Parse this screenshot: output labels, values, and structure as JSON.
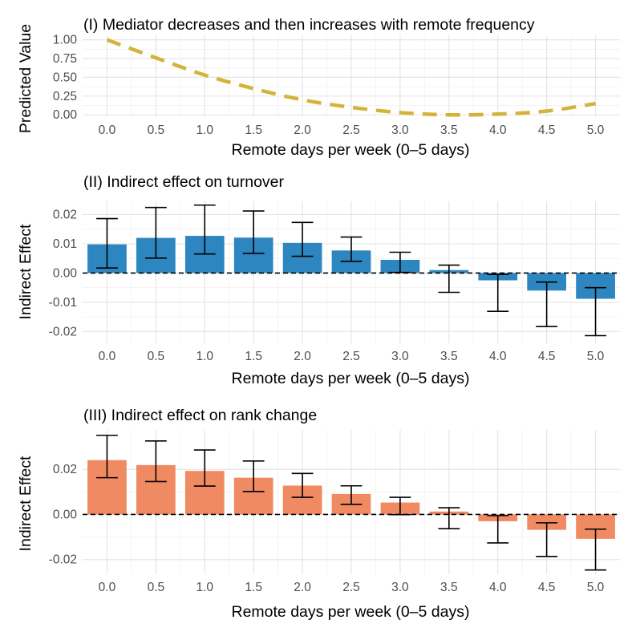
{
  "chart_data": [
    {
      "type": "line",
      "title": "(I) Mediator decreases and then increases with remote frequency",
      "xlabel": "Remote days per week (0–5 days)",
      "ylabel": "Predicted Value",
      "xlim": [
        -0.25,
        5.25
      ],
      "ylim": [
        -0.03,
        1.06
      ],
      "xticks": [
        "0.0",
        "0.5",
        "1.0",
        "1.5",
        "2.0",
        "2.5",
        "3.0",
        "3.5",
        "4.0",
        "4.5",
        "5.0"
      ],
      "yticks": [
        "0.00",
        "0.25",
        "0.50",
        "0.75",
        "1.00"
      ],
      "line_color": "#d4b33a",
      "line_style": "dashed",
      "series": [
        {
          "name": "Mediator",
          "x": [
            0.0,
            0.5,
            1.0,
            1.5,
            2.0,
            2.5,
            3.0,
            3.5,
            4.0,
            4.5,
            5.0
          ],
          "values": [
            1.0,
            0.76,
            0.53,
            0.35,
            0.2,
            0.1,
            0.03,
            0.0,
            0.01,
            0.05,
            0.15
          ]
        }
      ]
    },
    {
      "type": "bar",
      "title": "(II) Indirect effect on turnover",
      "xlabel": "Remote days per week (0–5 days)",
      "ylabel": "Indirect Effect",
      "xlim": [
        -0.25,
        5.25
      ],
      "ylim": [
        -0.024,
        0.0245
      ],
      "bar_color": "#2e86c1",
      "xticks": [
        "0.0",
        "0.5",
        "1.0",
        "1.5",
        "2.0",
        "2.5",
        "3.0",
        "3.5",
        "4.0",
        "4.5",
        "5.0"
      ],
      "yticks": [
        "-0.02",
        "-0.01",
        "0.00",
        "0.01",
        "0.02"
      ],
      "x": [
        0.0,
        0.5,
        1.0,
        1.5,
        2.0,
        2.5,
        3.0,
        3.5,
        4.0,
        4.5,
        5.0
      ],
      "values": [
        0.0098,
        0.012,
        0.0127,
        0.0121,
        0.0103,
        0.0077,
        0.0045,
        0.001,
        -0.0025,
        -0.006,
        -0.0088
      ],
      "ci_low": [
        0.0017,
        0.0051,
        0.0065,
        0.0067,
        0.0057,
        0.004,
        0.0002,
        -0.0066,
        -0.0131,
        -0.0183,
        -0.0214
      ],
      "ci_high": [
        0.0186,
        0.0224,
        0.0232,
        0.0212,
        0.0173,
        0.0123,
        0.0071,
        0.0027,
        -0.0005,
        -0.0031,
        -0.005
      ]
    },
    {
      "type": "bar",
      "title": "(III) Indirect effect on rank change",
      "xlabel": "Remote days per week (0–5 days)",
      "ylabel": "Indirect Effect",
      "xlim": [
        -0.25,
        5.25
      ],
      "ylim": [
        -0.0265,
        0.0375
      ],
      "bar_color": "#f08a62",
      "xticks": [
        "0.0",
        "0.5",
        "1.0",
        "1.5",
        "2.0",
        "2.5",
        "3.0",
        "3.5",
        "4.0",
        "4.5",
        "5.0"
      ],
      "yticks": [
        "-0.02",
        "0.00",
        "0.02"
      ],
      "x": [
        0.0,
        0.5,
        1.0,
        1.5,
        2.0,
        2.5,
        3.0,
        3.5,
        4.0,
        4.5,
        5.0
      ],
      "values": [
        0.0241,
        0.0219,
        0.0193,
        0.0163,
        0.0128,
        0.0091,
        0.0053,
        0.0013,
        -0.003,
        -0.0068,
        -0.0108
      ],
      "ci_low": [
        0.0163,
        0.0146,
        0.0126,
        0.0102,
        0.0076,
        0.0045,
        -0.0001,
        -0.0063,
        -0.0126,
        -0.0186,
        -0.0246
      ],
      "ci_high": [
        0.0351,
        0.0326,
        0.0286,
        0.0237,
        0.0182,
        0.0127,
        0.0076,
        0.003,
        -0.0005,
        -0.0037,
        -0.0065
      ]
    }
  ]
}
